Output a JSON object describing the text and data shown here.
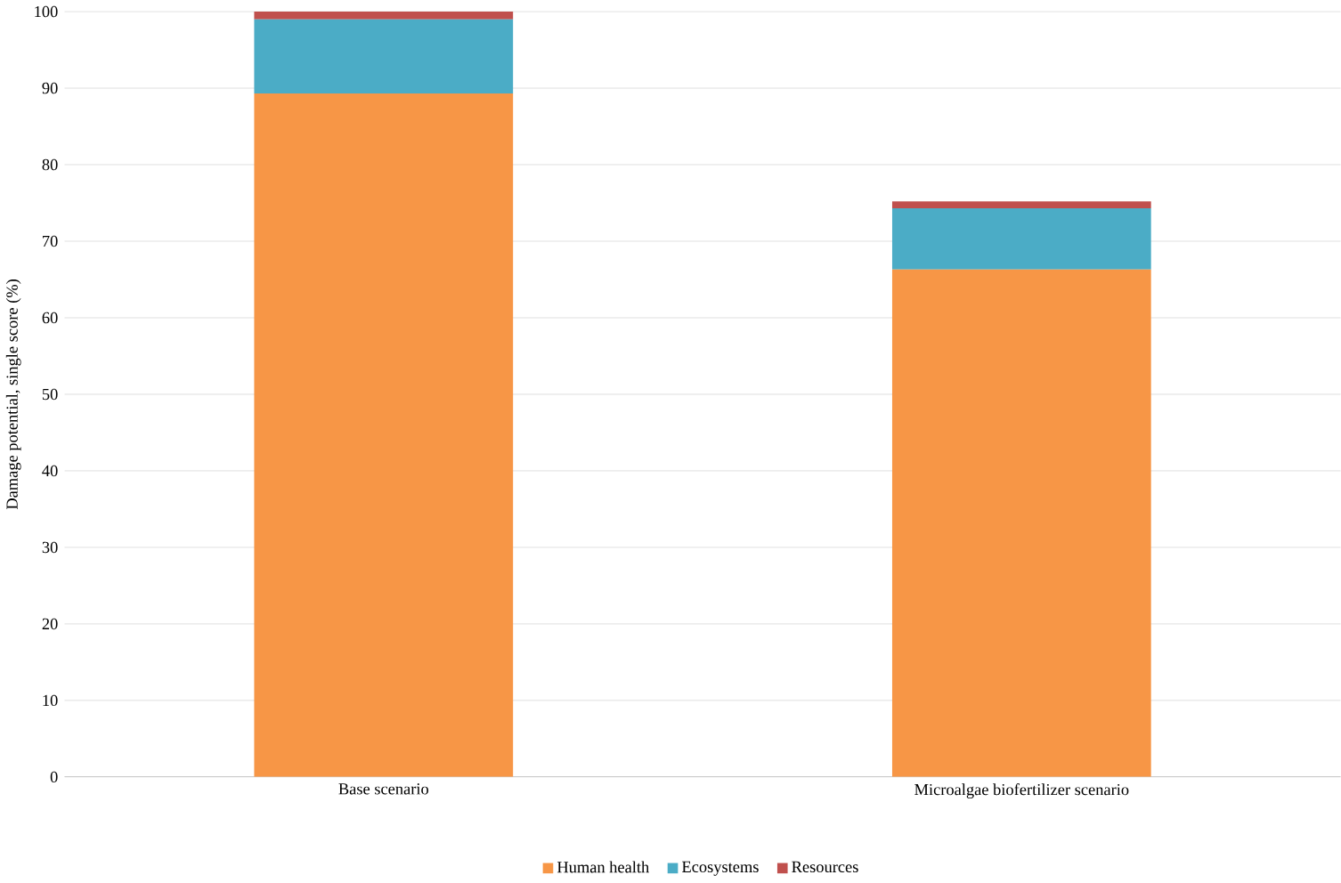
{
  "chart_data": {
    "type": "bar",
    "stacked": true,
    "ylabel": "Damage potential, single score (%)",
    "categories": [
      "Base scenario",
      "Microalgae biofertilizer scenario"
    ],
    "series": [
      {
        "name": "Human health",
        "color": "#f79646",
        "values": [
          89.3,
          66.3
        ]
      },
      {
        "name": "Ecosystems",
        "color": "#4bacc6",
        "values": [
          9.7,
          8.0
        ]
      },
      {
        "name": "Resources",
        "color": "#c0504d",
        "values": [
          1.0,
          0.9
        ]
      }
    ],
    "ylim": [
      0,
      100
    ],
    "yticks": [
      0,
      10,
      20,
      30,
      40,
      50,
      60,
      70,
      80,
      90,
      100
    ],
    "grid": "y",
    "legend": "bottom"
  }
}
